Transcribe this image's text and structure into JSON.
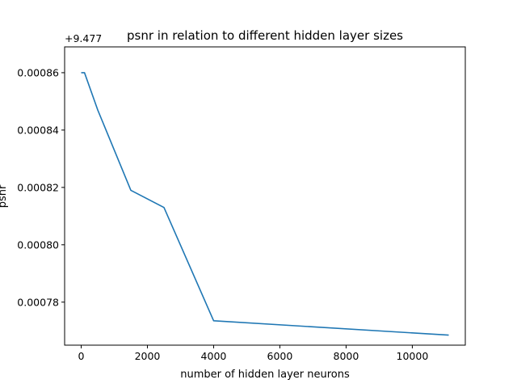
{
  "chart_data": {
    "type": "line",
    "title": "psnr in relation to different hidden layer sizes",
    "xlabel": "number of hidden layer neurons",
    "ylabel": "psnr",
    "y_offset_label": "+9.477",
    "y_offset": 9.477,
    "xlim": [
      -500,
      11600
    ],
    "ylim": [
      0.000765,
      0.000869
    ],
    "x_ticks": [
      0,
      2000,
      4000,
      6000,
      8000,
      10000
    ],
    "x_tick_labels": [
      "0",
      "2000",
      "4000",
      "6000",
      "8000",
      "10000"
    ],
    "y_ticks": [
      0.00078,
      0.0008,
      0.00082,
      0.00084,
      0.00086
    ],
    "y_tick_labels": [
      "0.00078",
      "0.00080",
      "0.00082",
      "0.00084",
      "0.00086"
    ],
    "grid": false,
    "line_color": "#1f77b4",
    "x": [
      0,
      100,
      500,
      1500,
      2500,
      4000,
      11100
    ],
    "y": [
      0.00086,
      0.00086,
      0.000847,
      0.000819,
      0.000813,
      0.0007735,
      0.0007685
    ]
  }
}
